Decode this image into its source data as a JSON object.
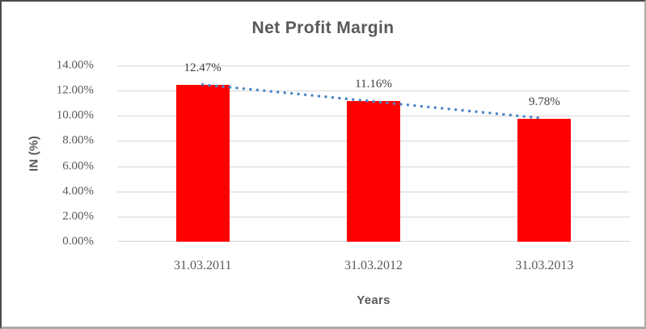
{
  "chart_data": {
    "type": "bar",
    "title": "Net Profit Margin",
    "xlabel": "Years",
    "ylabel": "IN (%)",
    "categories": [
      "31.03.2011",
      "31.03.2012",
      "31.03.2013"
    ],
    "values": [
      12.47,
      11.16,
      9.78
    ],
    "data_labels": [
      "12.47%",
      "11.16%",
      "9.78%"
    ],
    "ylim": [
      0,
      14
    ],
    "ytick_step": 2,
    "yticks": [
      {
        "value": 0,
        "label": "0.00%"
      },
      {
        "value": 2,
        "label": "2.00%"
      },
      {
        "value": 4,
        "label": "4.00%"
      },
      {
        "value": 6,
        "label": "6.00%"
      },
      {
        "value": 8,
        "label": "8.00%"
      },
      {
        "value": 10,
        "label": "10.00%"
      },
      {
        "value": 12,
        "label": "12.00%"
      },
      {
        "value": 14,
        "label": "14.00%"
      }
    ],
    "grid": true,
    "legend": "none",
    "colors": {
      "bar": "#ff0000",
      "trendline": "#4a85c5",
      "gridline": "#d6d6d6",
      "title_text": "#595959",
      "tick_text": "#595959",
      "data_label_text": "#3f3f3f"
    },
    "trendline": {
      "type": "linear",
      "style": "round-dotted"
    }
  }
}
